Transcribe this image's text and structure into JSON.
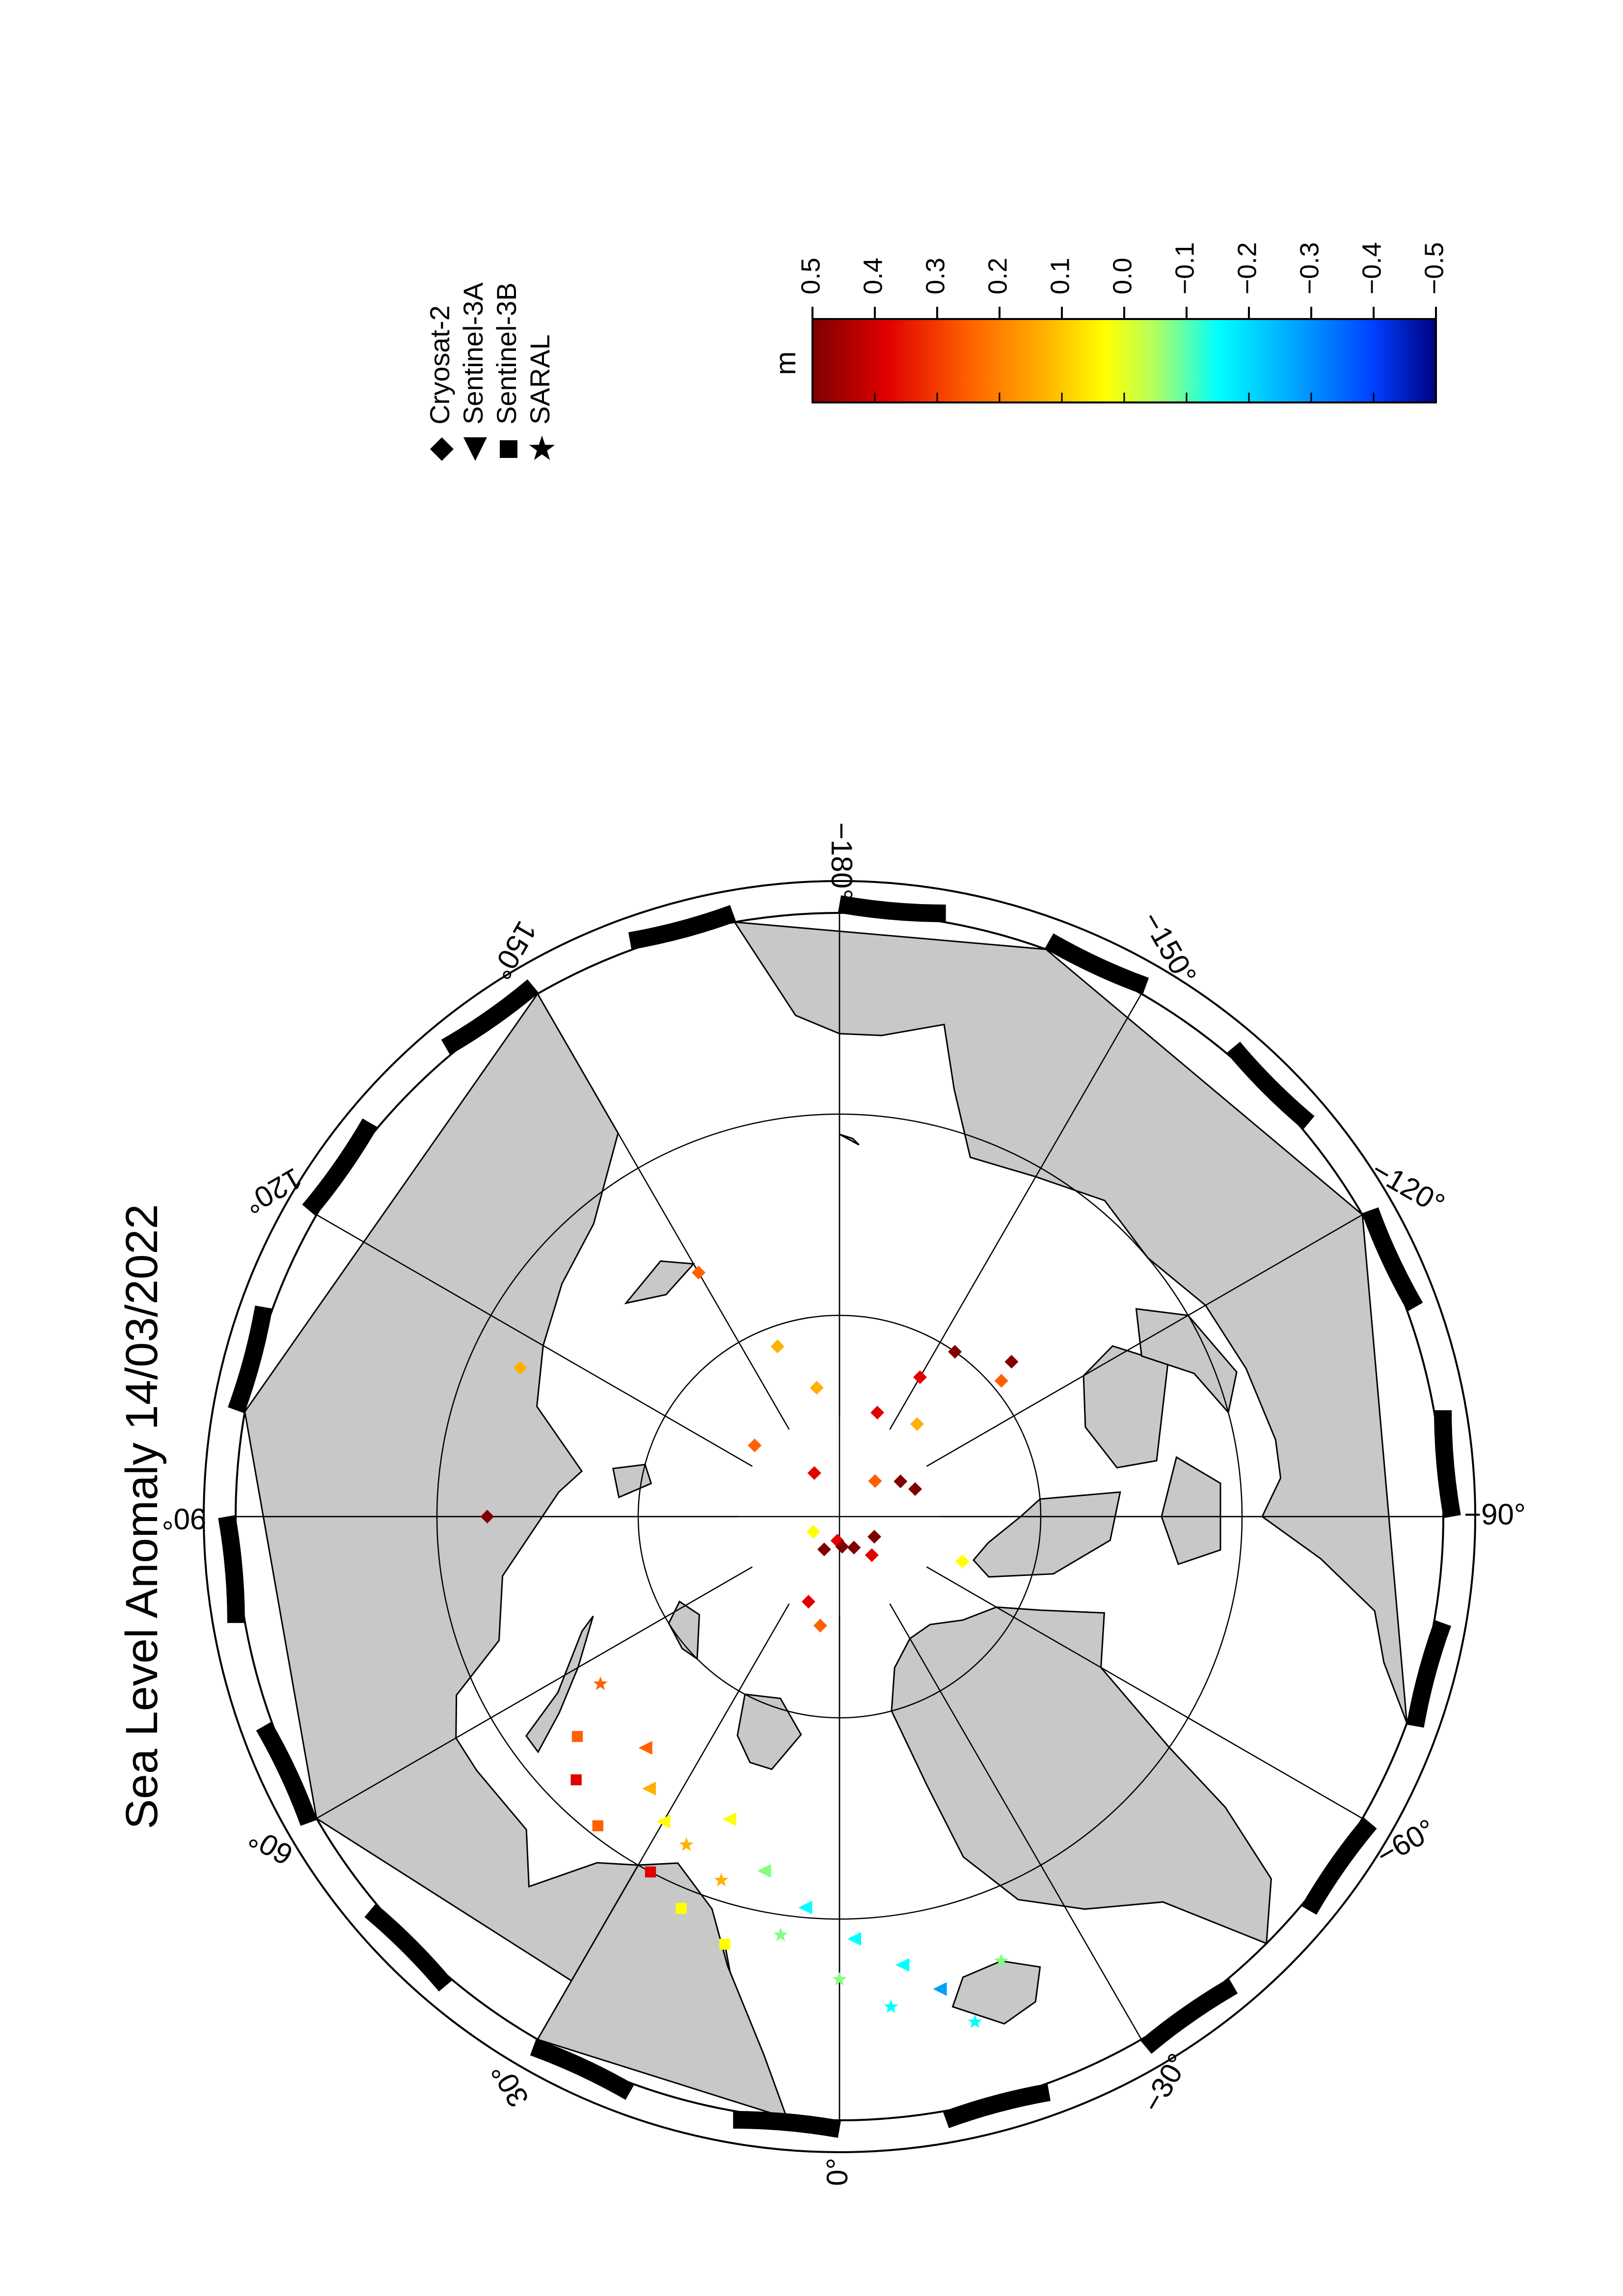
{
  "title": "Sea Level Anomaly 14/03/2022",
  "map": {
    "projection": "north-polar-stereographic",
    "land_color": "#c8c8c8",
    "ocean_color": "#ffffff",
    "longitude_labels": [
      {
        "lon": 90,
        "text": "90°"
      },
      {
        "lon": 60,
        "text": "60°"
      },
      {
        "lon": 30,
        "text": "30°"
      },
      {
        "lon": 0,
        "text": "0°"
      },
      {
        "lon": -30,
        "text": "−30°"
      },
      {
        "lon": -60,
        "text": "−60°"
      },
      {
        "lon": -90,
        "text": "−90°"
      },
      {
        "lon": -120,
        "text": "−120°"
      },
      {
        "lon": -150,
        "text": "−150°"
      },
      {
        "lon": -180,
        "text": "−180°"
      },
      {
        "lon": 150,
        "text": "150°"
      },
      {
        "lon": 120,
        "text": "120°"
      }
    ]
  },
  "legend": {
    "items": [
      {
        "symbol": "diamond",
        "label": "Cryosat-2"
      },
      {
        "symbol": "triangle",
        "label": "Sentinel-3A"
      },
      {
        "symbol": "square",
        "label": "Sentinel-3B"
      },
      {
        "symbol": "star",
        "label": "SARAL"
      }
    ]
  },
  "colorbar": {
    "unit": "m",
    "range": [
      -0.5,
      0.5
    ],
    "ticks": [
      "0.5",
      "0.4",
      "0.3",
      "0.2",
      "0.1",
      "0.0",
      "−0.1",
      "−0.2",
      "−0.3",
      "−0.4",
      "−0.5"
    ],
    "colors": [
      "#800000",
      "#e00000",
      "#ff6000",
      "#ffb000",
      "#ffff00",
      "#80ff80",
      "#00ffff",
      "#00a0ff",
      "#0040ff",
      "#000080"
    ]
  },
  "chart_data": {
    "type": "scatter",
    "title": "Sea Level Anomaly 14/03/2022",
    "value_unit": "m",
    "color_range": [
      -0.5,
      0.5
    ],
    "series": [
      {
        "name": "Cryosat-2",
        "points": [
          {
            "lon": 20,
            "lat": 85.5,
            "sla": 0.35
          },
          {
            "lon": 25,
            "lat": 88.2,
            "sla": 0.42
          },
          {
            "lon": 5,
            "lat": 88.8,
            "sla": 0.38
          },
          {
            "lon": -5,
            "lat": 88.5,
            "sla": 0.4
          },
          {
            "lon": -25,
            "lat": 88.3,
            "sla": 0.44
          },
          {
            "lon": -40,
            "lat": 87.5,
            "sla": 0.38
          },
          {
            "lon": -60,
            "lat": 88.0,
            "sla": 0.46
          },
          {
            "lon": -110,
            "lat": 86.0,
            "sla": 0.45
          },
          {
            "lon": -120,
            "lat": 86.5,
            "sla": 0.4
          },
          {
            "lon": -135,
            "lat": 87.5,
            "sla": 0.3
          },
          {
            "lon": -140,
            "lat": 84.0,
            "sla": 0.2
          },
          {
            "lon": -150,
            "lat": 82.0,
            "sla": 0.35
          },
          {
            "lon": -160,
            "lat": 84.5,
            "sla": 0.32
          },
          {
            "lon": -145,
            "lat": 80.0,
            "sla": 0.42
          },
          {
            "lon": -130,
            "lat": 79.5,
            "sla": 0.25
          },
          {
            "lon": -132,
            "lat": 78.5,
            "sla": 0.46
          },
          {
            "lon": 150,
            "lat": 76.0,
            "sla": 0.22
          },
          {
            "lon": 160,
            "lat": 81.0,
            "sla": 0.15
          },
          {
            "lon": 170,
            "lat": 83.5,
            "sla": 0.2
          },
          {
            "lon": 130,
            "lat": 84.5,
            "sla": 0.25
          },
          {
            "lon": 150,
            "lat": 87.5,
            "sla": 0.38
          },
          {
            "lon": -70,
            "lat": 83.5,
            "sla": 0.1
          },
          {
            "lon": 60,
            "lat": 88.5,
            "sla": 0.05
          },
          {
            "lon": 90,
            "lat": 72.5,
            "sla": 0.48
          },
          {
            "lon": 115,
            "lat": 72.5,
            "sla": 0.12
          },
          {
            "lon": 10,
            "lat": 84.5,
            "sla": 0.22
          }
        ]
      },
      {
        "name": "Sentinel-3A",
        "points": [
          {
            "lon": 40,
            "lat": 75.0,
            "sla": 0.3
          },
          {
            "lon": 35,
            "lat": 73.5,
            "sla": 0.18
          },
          {
            "lon": 30,
            "lat": 72.5,
            "sla": 0.08
          },
          {
            "lon": 20,
            "lat": 74.0,
            "sla": 0.05
          },
          {
            "lon": 12,
            "lat": 72.0,
            "sla": -0.05
          },
          {
            "lon": 5,
            "lat": 70.5,
            "sla": -0.1
          },
          {
            "lon": -2,
            "lat": 69.0,
            "sla": -0.15
          },
          {
            "lon": -8,
            "lat": 67.5,
            "sla": -0.12
          },
          {
            "lon": -12,
            "lat": 66.0,
            "sla": -0.2
          }
        ]
      },
      {
        "name": "Sentinel-3B",
        "points": [
          {
            "lon": 50,
            "lat": 73.0,
            "sla": 0.28
          },
          {
            "lon": 45,
            "lat": 71.5,
            "sla": 0.33
          },
          {
            "lon": 38,
            "lat": 70.5,
            "sla": 0.24
          },
          {
            "lon": 28,
            "lat": 70.0,
            "sla": 0.36
          },
          {
            "lon": 22,
            "lat": 69.0,
            "sla": 0.1
          },
          {
            "lon": 15,
            "lat": 68.0,
            "sla": 0.02
          }
        ]
      },
      {
        "name": "SARAL",
        "points": [
          {
            "lon": 55,
            "lat": 75.5,
            "sla": 0.26
          },
          {
            "lon": 25,
            "lat": 72.0,
            "sla": 0.14
          },
          {
            "lon": 18,
            "lat": 71.0,
            "sla": 0.2
          },
          {
            "lon": 8,
            "lat": 69.0,
            "sla": -0.02
          },
          {
            "lon": 0,
            "lat": 67.0,
            "sla": -0.08
          },
          {
            "lon": -6,
            "lat": 65.5,
            "sla": -0.18
          },
          {
            "lon": -15,
            "lat": 64.0,
            "sla": -0.1
          },
          {
            "lon": -20,
            "lat": 66.5,
            "sla": -0.05
          }
        ]
      }
    ]
  }
}
